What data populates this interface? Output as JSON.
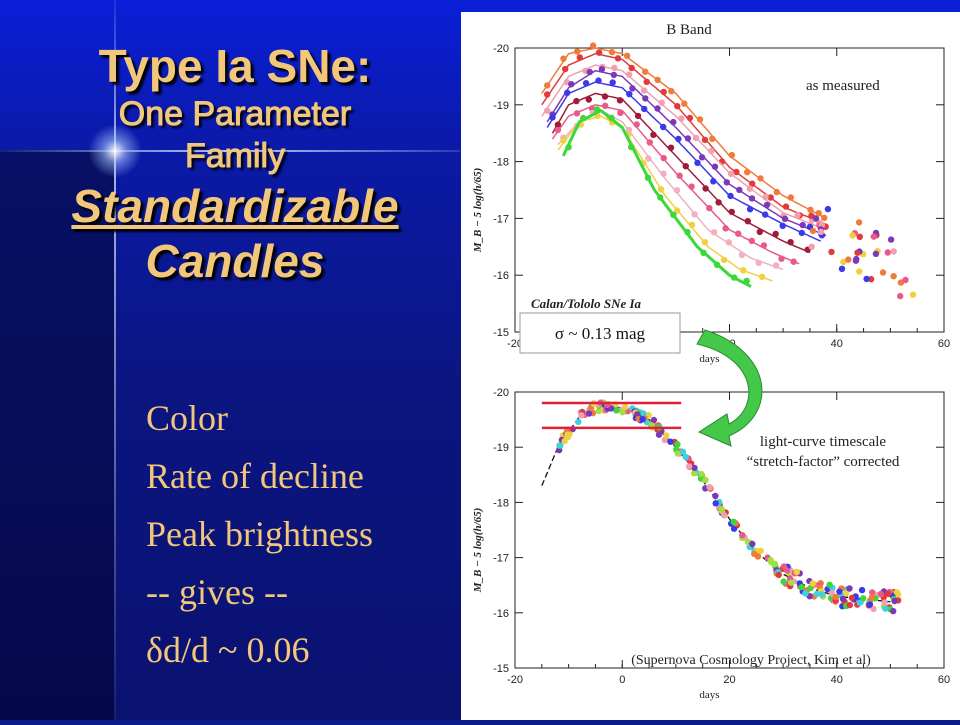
{
  "slide": {
    "title_line1": "Type Ia SNe:",
    "title_line2": "One Parameter",
    "title_line3": "Family",
    "title_line4": "Standardizable",
    "title_line5": "Candles",
    "bullets": [
      "Color",
      "Rate of decline",
      "Peak brightness",
      "-- gives --",
      "δd/d ~ 0.06"
    ]
  },
  "colors": {
    "title": "#f2c77a",
    "arrow": "#44c84a",
    "sigma_box": "#ffffff",
    "red_lines": "#e0203a"
  },
  "chart_data": [
    {
      "type": "line",
      "title": "B Band",
      "annotation": "as measured",
      "sample_label": "Calan/Tololo SNe Ia",
      "xlabel": "days",
      "ylabel": "M_B − 5 log(h/65)",
      "xlim": [
        -20,
        60
      ],
      "ylim": [
        -15,
        -20
      ],
      "x_ticks": [
        "-20",
        "0",
        "20",
        "40",
        "60"
      ],
      "y_ticks": [
        "-20",
        "-19",
        "-18",
        "-17",
        "-16",
        "-15"
      ],
      "series": [
        {
          "color": "#f07a3a",
          "x": [
            -15,
            -10,
            -5,
            0,
            10,
            20,
            30,
            38
          ],
          "y": [
            -19.2,
            -19.9,
            -20.0,
            -19.9,
            -19.2,
            -18.1,
            -17.4,
            -17.0
          ]
        },
        {
          "color": "#e23a3a",
          "x": [
            -15,
            -10,
            -5,
            0,
            10,
            20,
            30,
            38
          ],
          "y": [
            -19.0,
            -19.7,
            -19.9,
            -19.8,
            -19.0,
            -17.9,
            -17.2,
            -16.9
          ]
        },
        {
          "color": "#f0a0b0",
          "x": [
            -15,
            -10,
            -5,
            0,
            10,
            20,
            30,
            38
          ],
          "y": [
            -18.8,
            -19.5,
            -19.7,
            -19.6,
            -18.8,
            -17.8,
            -17.1,
            -16.8
          ]
        },
        {
          "color": "#7a3ab8",
          "x": [
            -14,
            -10,
            -5,
            0,
            10,
            20,
            30,
            38
          ],
          "y": [
            -18.7,
            -19.3,
            -19.6,
            -19.5,
            -18.6,
            -17.6,
            -17.0,
            -16.7
          ]
        },
        {
          "color": "#3a3ae8",
          "x": [
            -14,
            -10,
            -5,
            0,
            10,
            20,
            30,
            37
          ],
          "y": [
            -18.6,
            -19.2,
            -19.4,
            -19.3,
            -18.4,
            -17.4,
            -16.9,
            -16.6
          ]
        },
        {
          "color": "#a01a3a",
          "x": [
            -13,
            -10,
            -5,
            0,
            10,
            20,
            30,
            35
          ],
          "y": [
            -18.5,
            -19.0,
            -19.2,
            -19.1,
            -18.1,
            -17.1,
            -16.6,
            -16.4
          ]
        },
        {
          "color": "#e85a8a",
          "x": [
            -13,
            -10,
            -5,
            0,
            10,
            20,
            28,
            33
          ],
          "y": [
            -18.4,
            -18.8,
            -19.0,
            -18.9,
            -17.8,
            -16.8,
            -16.4,
            -16.2
          ]
        },
        {
          "color": "#f0b0c0",
          "x": [
            -12,
            -8,
            -4,
            0,
            8,
            16,
            24,
            30
          ],
          "y": [
            -18.3,
            -18.7,
            -18.9,
            -18.7,
            -17.7,
            -16.8,
            -16.3,
            -16.1
          ]
        },
        {
          "color": "#f0d040",
          "x": [
            -12,
            -8,
            -4,
            0,
            8,
            16,
            22,
            28
          ],
          "y": [
            -18.2,
            -18.7,
            -18.8,
            -18.6,
            -17.4,
            -16.5,
            -16.1,
            -15.9
          ]
        },
        {
          "color": "#3ad83a",
          "x": [
            -11,
            -8,
            -4,
            0,
            6,
            14,
            20,
            24
          ],
          "y": [
            -18.1,
            -18.7,
            -18.9,
            -18.6,
            -17.5,
            -16.5,
            -16.0,
            -15.8
          ]
        }
      ]
    },
    {
      "type": "scatter",
      "annotation": "light-curve timescale “stretch-factor” corrected",
      "credit": "(Supernova Cosmology Project, Kim et al)",
      "sigma_label": "σ ~ 0.13 mag",
      "xlabel": "days",
      "ylabel": "M_B − 5 log(h/65)",
      "xlim": [
        -20,
        60
      ],
      "ylim": [
        -15,
        -20
      ],
      "x_ticks": [
        "-20",
        "0",
        "20",
        "40",
        "60"
      ],
      "y_ticks": [
        "-20",
        "-19",
        "-18",
        "-17",
        "-16",
        "-15"
      ],
      "red_lines_y": [
        -19.8,
        -19.35
      ],
      "template": {
        "x": [
          -15,
          -12,
          -8,
          -5,
          0,
          5,
          10,
          15,
          20,
          25,
          30,
          35,
          40,
          45,
          50
        ],
        "y": [
          -18.3,
          -19.0,
          -19.55,
          -19.72,
          -19.72,
          -19.5,
          -19.0,
          -18.4,
          -17.7,
          -17.1,
          -16.7,
          -16.45,
          -16.3,
          -16.25,
          -16.2
        ]
      }
    }
  ]
}
